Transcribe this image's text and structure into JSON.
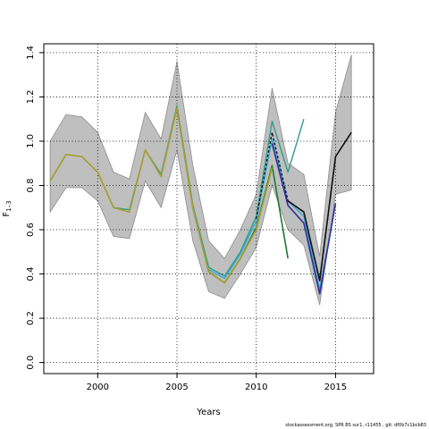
{
  "chart_data": {
    "type": "line",
    "xlabel": "Years",
    "ylabel": "F",
    "ylabel_sub": "1–3",
    "xlim": [
      1996.6,
      2017.4
    ],
    "ylim": [
      -0.05,
      1.44
    ],
    "xticks": [
      2000,
      2005,
      2010,
      2015
    ],
    "yticks": [
      0.0,
      0.2,
      0.4,
      0.6,
      0.8,
      1.0,
      1.2,
      1.4
    ],
    "ytick_labels": [
      "0.0",
      "0.2",
      "0.4",
      "0.6",
      "0.8",
      "1.0",
      "1.2",
      "1.4"
    ],
    "grid": true,
    "band": {
      "x": [
        1997,
        1998,
        1999,
        2000,
        2001,
        2002,
        2003,
        2004,
        2005,
        2006,
        2007,
        2008,
        2009,
        2010,
        2011,
        2012,
        2013,
        2014,
        2015,
        2016
      ],
      "upper": [
        1.0,
        1.12,
        1.11,
        1.04,
        0.86,
        0.83,
        1.13,
        1.01,
        1.36,
        0.89,
        0.55,
        0.47,
        0.6,
        0.76,
        1.24,
        0.9,
        0.85,
        0.48,
        1.13,
        1.39
      ],
      "lower": [
        0.68,
        0.79,
        0.79,
        0.73,
        0.57,
        0.56,
        0.82,
        0.7,
        0.96,
        0.55,
        0.32,
        0.29,
        0.4,
        0.52,
        0.8,
        0.6,
        0.53,
        0.26,
        0.76,
        0.78
      ]
    },
    "series": [
      {
        "color": "#2f9d8a",
        "width": 1.4,
        "dash": "",
        "x": [
          1997,
          1998,
          1999,
          2000,
          2001,
          2002,
          2003,
          2004,
          2005,
          2006,
          2007,
          2008,
          2009,
          2010,
          2011,
          2012,
          2013
        ],
        "values": [
          0.82,
          0.94,
          0.93,
          0.86,
          0.7,
          0.69,
          0.96,
          0.85,
          1.16,
          0.71,
          0.43,
          0.39,
          0.5,
          0.66,
          1.09,
          0.86,
          1.1
        ]
      },
      {
        "color": "#3aa7d8",
        "width": 1.4,
        "dash": "",
        "x": [
          2007,
          2008,
          2009,
          2010,
          2011,
          2012,
          2013,
          2014,
          2015
        ],
        "values": [
          0.42,
          0.38,
          0.49,
          0.64,
          1.01,
          0.73,
          0.66,
          0.33,
          0.72
        ]
      },
      {
        "color": "#2e2e9a",
        "width": 1.6,
        "dash": "",
        "x": [
          2011,
          2012,
          2013,
          2014,
          2015
        ],
        "values": [
          0.99,
          0.71,
          0.63,
          0.31,
          0.72
        ]
      },
      {
        "color": "#1e7a32",
        "width": 1.6,
        "dash": "",
        "x": [
          2005,
          2006,
          2007,
          2008,
          2009,
          2010,
          2011,
          2012
        ],
        "values": [
          1.15,
          0.7,
          0.41,
          0.36,
          0.47,
          0.61,
          0.89,
          0.47
        ]
      },
      {
        "color": "#a8a030",
        "width": 1.6,
        "dash": "",
        "x": [
          1997,
          1998,
          1999,
          2000,
          2001,
          2002,
          2003,
          2004,
          2005,
          2006,
          2007,
          2008,
          2009,
          2010,
          2011
        ],
        "values": [
          0.82,
          0.94,
          0.93,
          0.86,
          0.7,
          0.68,
          0.96,
          0.84,
          1.15,
          0.7,
          0.41,
          0.36,
          0.47,
          0.6,
          0.88
        ]
      },
      {
        "color": "#111111",
        "width": 1.6,
        "dash": "",
        "x": [
          2012,
          2013,
          2014,
          2015,
          2016
        ],
        "values": [
          0.73,
          0.68,
          0.37,
          0.93,
          1.04
        ]
      },
      {
        "color": "#111111",
        "width": 1.3,
        "dash": "3,2",
        "x": [
          2010,
          2011,
          2012,
          2013,
          2014,
          2015
        ],
        "values": [
          0.65,
          1.04,
          0.73,
          0.68,
          0.37,
          0.93
        ]
      }
    ]
  },
  "footer": "stockassessment.org, SPR BS sur1, r11455 , git: df0b7c1bcb83"
}
